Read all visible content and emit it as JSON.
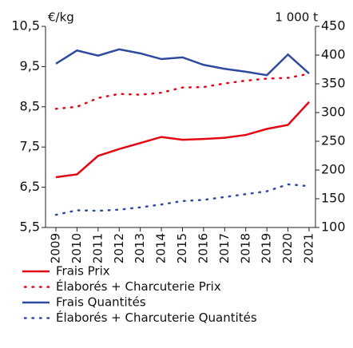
{
  "chart_data": {
    "type": "line",
    "y_unit": "€/kg",
    "y2_unit": "1 000 t",
    "categories": [
      "2009",
      "2010",
      "2011",
      "2012",
      "2013",
      "2014",
      "2015",
      "2016",
      "2017",
      "2018",
      "2019",
      "2020",
      "2021"
    ],
    "ylim": [
      5.5,
      10.5
    ],
    "yticks": [
      {
        "value": 5.5,
        "label": "5,5"
      },
      {
        "value": 6.5,
        "label": "6,5"
      },
      {
        "value": 7.5,
        "label": "7,5"
      },
      {
        "value": 8.5,
        "label": "8,5"
      },
      {
        "value": 9.5,
        "label": "9,5"
      },
      {
        "value": 10.5,
        "label": "10,5"
      }
    ],
    "y_color": "#e30613",
    "y2lim": [
      100,
      450
    ],
    "y2ticks": [
      100,
      150,
      200,
      250,
      300,
      350,
      400,
      450
    ],
    "y2_color": "#2e4a9e",
    "series": [
      {
        "name": "Frais Prix",
        "color": "#e30613",
        "line_style": "solid",
        "axis": "y",
        "values": [
          6.75,
          6.82,
          7.28,
          7.45,
          7.6,
          7.75,
          7.68,
          7.7,
          7.73,
          7.8,
          7.95,
          8.05,
          8.62
        ]
      },
      {
        "name": "Élaborés + Charcuterie Prix",
        "color": "#e30613",
        "line_style": "dotted",
        "axis": "y",
        "values": [
          8.45,
          8.5,
          8.72,
          8.82,
          8.8,
          8.85,
          8.98,
          8.99,
          9.08,
          9.15,
          9.2,
          9.22,
          9.32
        ]
      },
      {
        "name": "Frais Quantités",
        "color": "#2e4a9e",
        "line_style": "solid",
        "axis": "y2",
        "values": [
          385,
          408,
          399,
          410,
          403,
          393,
          396,
          383,
          376,
          371,
          365,
          401,
          368
        ]
      },
      {
        "name": "Élaborés + Charcuterie Quantités",
        "color": "#2e4a9e",
        "line_style": "dotted",
        "axis": "y2",
        "values": [
          122,
          130,
          129,
          131,
          135,
          140,
          146,
          148,
          153,
          158,
          163,
          175,
          172
        ]
      }
    ]
  }
}
